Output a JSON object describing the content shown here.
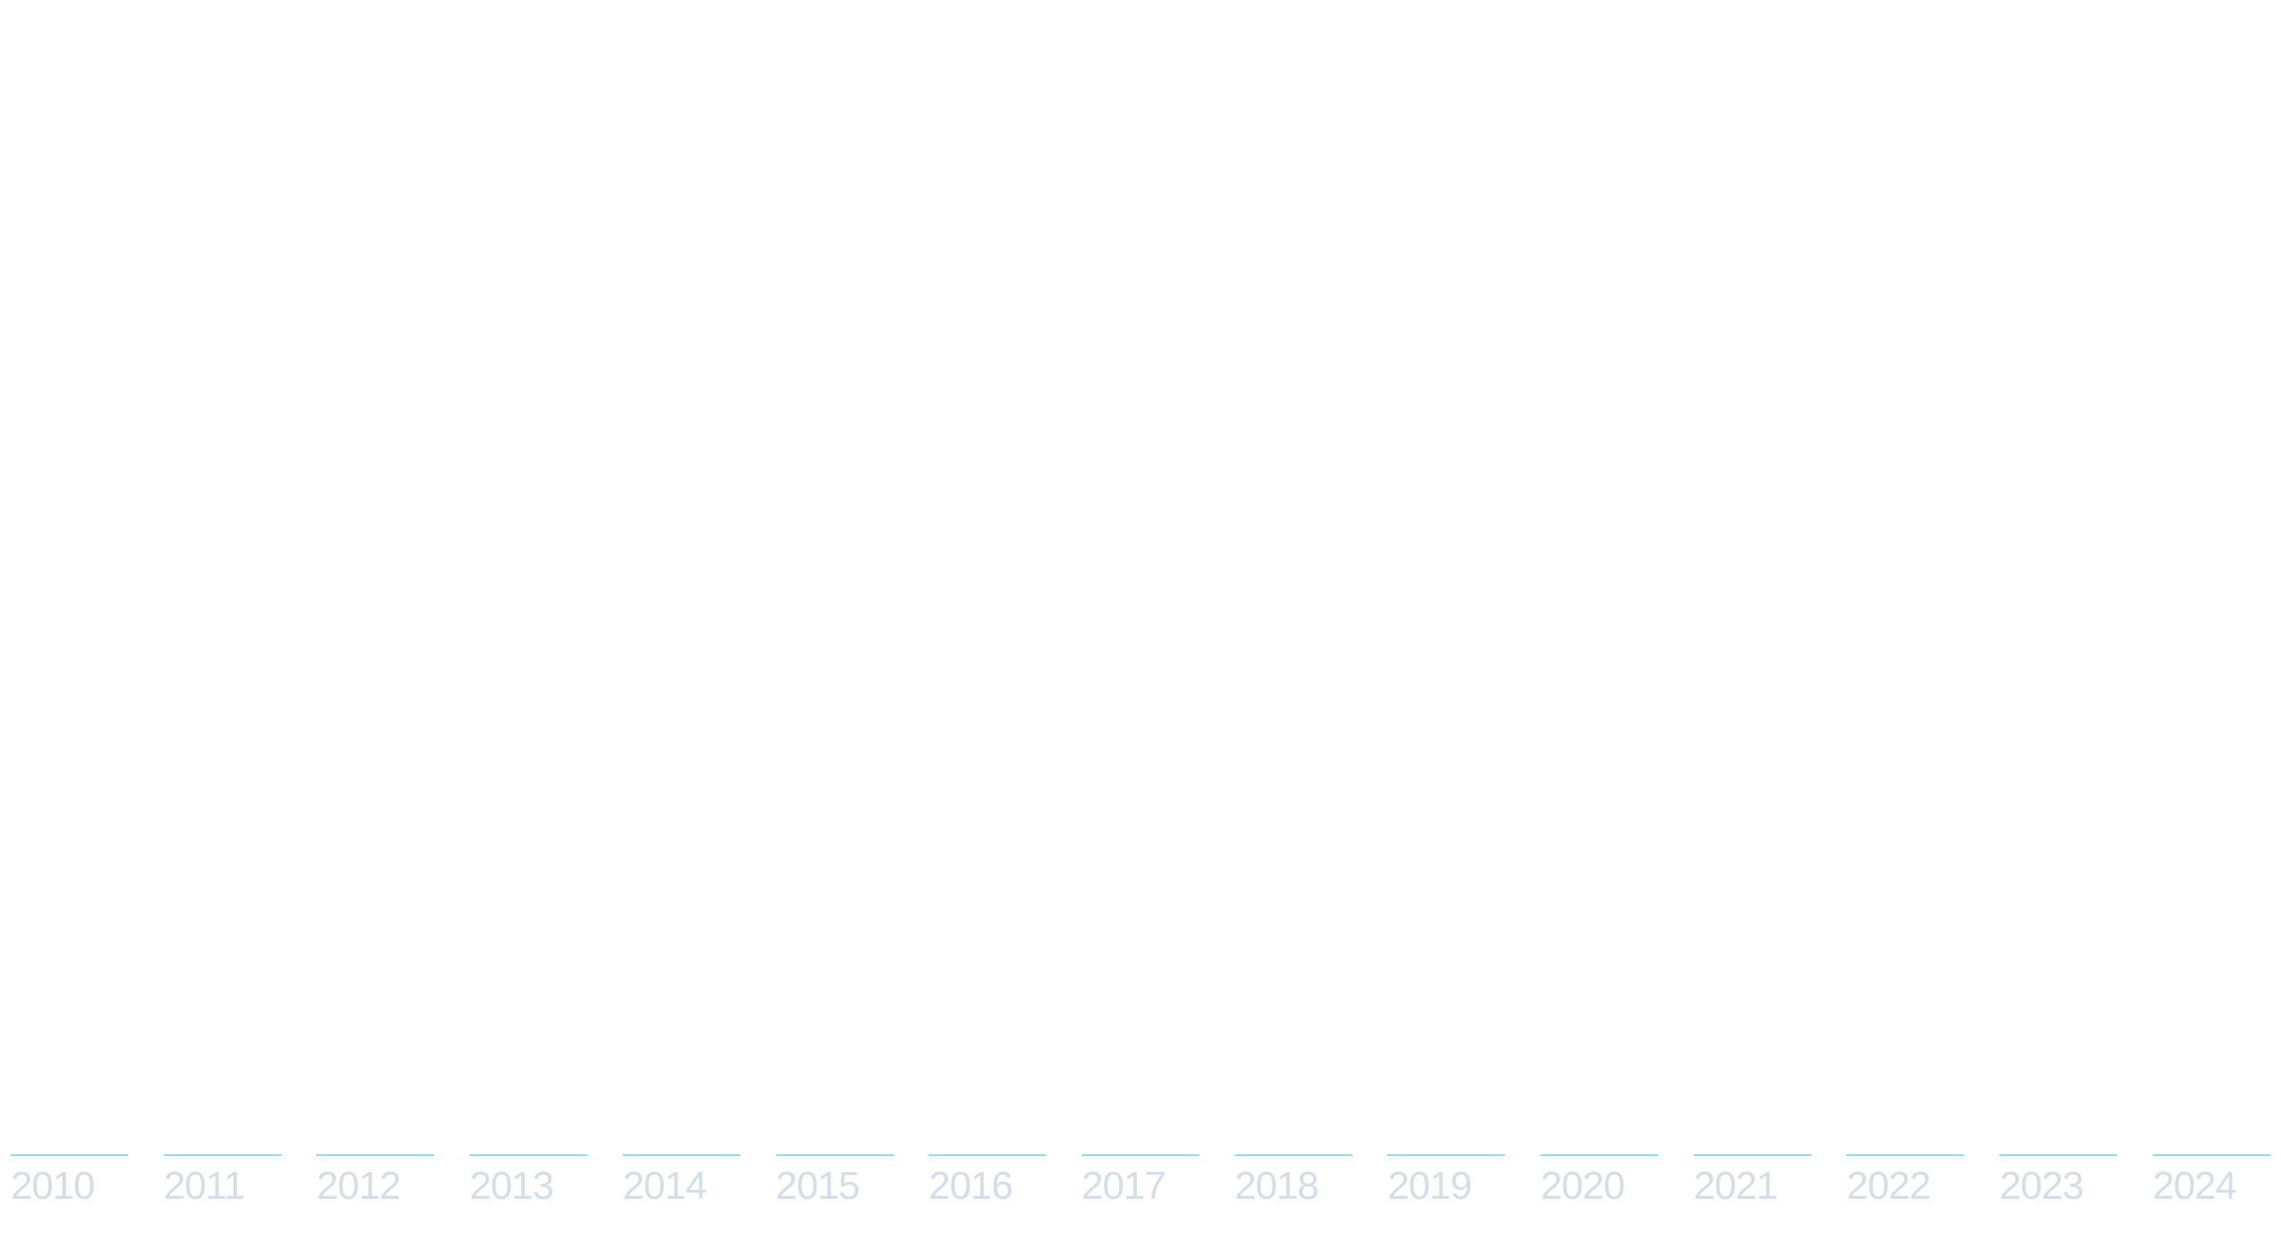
{
  "colors": {
    "line": "#8fdde3",
    "label": "#d4dee6",
    "background": "#ffffff"
  },
  "timeline": {
    "years": [
      {
        "label": "2010"
      },
      {
        "label": "2011"
      },
      {
        "label": "2012"
      },
      {
        "label": "2013"
      },
      {
        "label": "2014"
      },
      {
        "label": "2015"
      },
      {
        "label": "2016"
      },
      {
        "label": "2017"
      },
      {
        "label": "2018"
      },
      {
        "label": "2019"
      },
      {
        "label": "2020"
      },
      {
        "label": "2021"
      },
      {
        "label": "2022"
      },
      {
        "label": "2023"
      },
      {
        "label": "2024"
      }
    ]
  }
}
